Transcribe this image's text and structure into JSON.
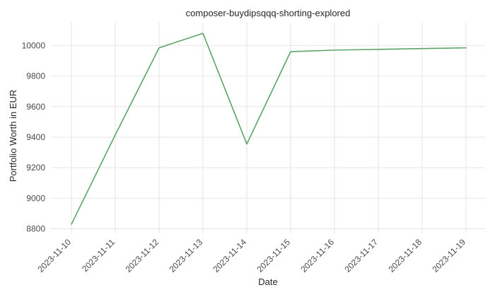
{
  "chart_data": {
    "type": "line",
    "title": "composer-buydipsqqq-shorting-explored",
    "xlabel": "Date",
    "ylabel": "Portfolio Worth in EUR",
    "x": [
      "2023-11-10",
      "2023-11-11",
      "2023-11-12",
      "2023-11-13",
      "2023-11-14",
      "2023-11-15",
      "2023-11-16",
      "2023-11-17",
      "2023-11-18",
      "2023-11-19"
    ],
    "series": [
      {
        "values": [
          8830,
          9415,
          9985,
          10080,
          9355,
          9960,
          9970,
          9975,
          9980,
          9985
        ],
        "color": "#5aa469"
      }
    ],
    "yticks": [
      8800,
      9000,
      9200,
      9400,
      9600,
      9800,
      10000
    ],
    "ylim": [
      8770,
      10150
    ],
    "grid": true,
    "legend": "none"
  }
}
